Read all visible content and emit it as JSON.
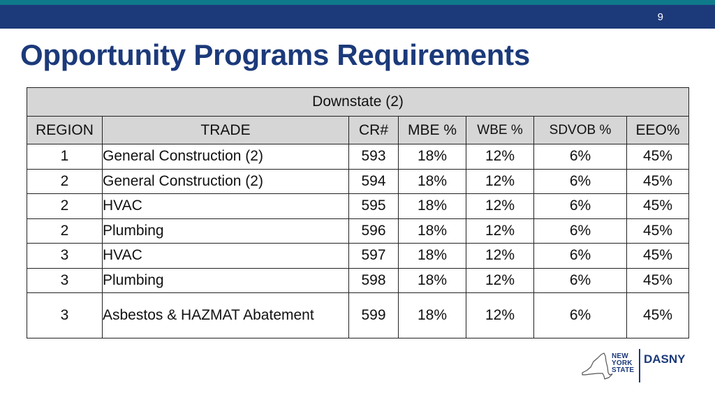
{
  "slide": {
    "page_number": "9",
    "title": "Opportunity Programs Requirements"
  },
  "table": {
    "band_title": "Downstate (2)",
    "headers": [
      "REGION",
      "TRADE",
      "CR#",
      "MBE %",
      "WBE %",
      "SDVOB %",
      "EEO%"
    ],
    "rows": [
      [
        "1",
        "General Construction (2)",
        "593",
        "18%",
        "12%",
        "6%",
        "45%"
      ],
      [
        "2",
        "General Construction (2)",
        "594",
        "18%",
        "12%",
        "6%",
        "45%"
      ],
      [
        "2",
        "HVAC",
        "595",
        "18%",
        "12%",
        "6%",
        "45%"
      ],
      [
        "2",
        "Plumbing",
        "596",
        "18%",
        "12%",
        "6%",
        "45%"
      ],
      [
        "3",
        "HVAC",
        "597",
        "18%",
        "12%",
        "6%",
        "45%"
      ],
      [
        "3",
        "Plumbing",
        "598",
        "18%",
        "12%",
        "6%",
        "45%"
      ],
      [
        "3",
        "Asbestos & HAZMAT Abatement",
        "599",
        "18%",
        "12%",
        "6%",
        "45%"
      ]
    ]
  },
  "logo": {
    "state_line1": "NEW",
    "state_line2": "YORK",
    "state_line3": "STATE",
    "agency": "DASNY"
  },
  "colors": {
    "brand_navy": "#1c3a7a",
    "accent_teal": "#0e7a8a",
    "header_gray": "#d6d6d6"
  }
}
